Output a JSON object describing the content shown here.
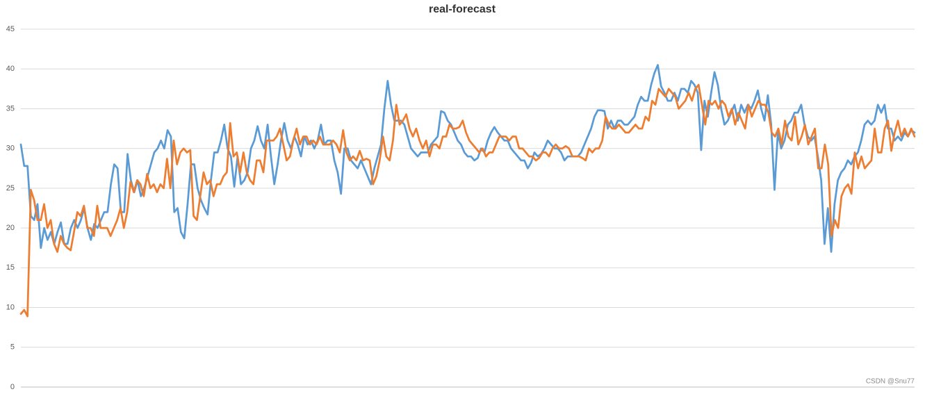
{
  "chart_data": {
    "type": "line",
    "title": "real-forecast",
    "watermark": "CSDN @Snu77",
    "ylim": [
      0,
      45
    ],
    "yticks": [
      0,
      5,
      10,
      15,
      20,
      25,
      30,
      35,
      40,
      45
    ],
    "grid": true,
    "series": [
      {
        "color": "#5b9bd5",
        "values": [
          30.5,
          27.8,
          27.8,
          21.5,
          21,
          23,
          17.5,
          20,
          18.5,
          19.5,
          18,
          19.5,
          20.7,
          18,
          18,
          20,
          21,
          20,
          21,
          22.5,
          20,
          18.5,
          20.5,
          20,
          21,
          22,
          22,
          25.5,
          28,
          27.5,
          22,
          22,
          29.3,
          26,
          24.5,
          26,
          24,
          25,
          26.5,
          28,
          29.5,
          30,
          31,
          30,
          32.3,
          31.5,
          22,
          22.5,
          19.5,
          18.7,
          23,
          28,
          28,
          25,
          23.5,
          22.5,
          21.7,
          26,
          29.5,
          29.5,
          31,
          33,
          30,
          29,
          25.2,
          29,
          25.5,
          26,
          27,
          30,
          31,
          32.8,
          31,
          30,
          33,
          29,
          25.5,
          28,
          31,
          33.2,
          31,
          30,
          31.5,
          30.5,
          29,
          31.5,
          30.5,
          31,
          30,
          31,
          33,
          30.5,
          31,
          31,
          28.5,
          27,
          24.3,
          30,
          30,
          28.5,
          28,
          27.5,
          28.5,
          27.5,
          26.5,
          25.5,
          27.5,
          29,
          30.5,
          35,
          38.5,
          35.5,
          33.5,
          33.5,
          33.5,
          33,
          31.5,
          30,
          29.5,
          29,
          29.5,
          29.5,
          29.5,
          30.5,
          31,
          31.5,
          34.7,
          34.5,
          33.5,
          33,
          32,
          31,
          30.5,
          29.5,
          29,
          29,
          28.5,
          28.8,
          30,
          29.5,
          31,
          32,
          32.7,
          32,
          31.5,
          31,
          31,
          30,
          29.5,
          29,
          28.5,
          28.5,
          27.5,
          28.2,
          29.5,
          29,
          29.3,
          30,
          31,
          30.5,
          30,
          30,
          29.5,
          28.5,
          29,
          29,
          29,
          29,
          29.5,
          30.5,
          31.5,
          32.5,
          34,
          34.8,
          34.8,
          34.7,
          32.5,
          33.5,
          32.5,
          33.5,
          33.5,
          33,
          33,
          33.5,
          34,
          35.5,
          36.5,
          36,
          36,
          38,
          39.5,
          40.5,
          37.8,
          37,
          36,
          36,
          37,
          36,
          37.5,
          37.5,
          37,
          38.5,
          38,
          37,
          29.8,
          36,
          34,
          37,
          39.6,
          38,
          35,
          33,
          33.5,
          34.5,
          35.5,
          33.5,
          35.5,
          34.5,
          35.5,
          35,
          36,
          37.3,
          35,
          33.5,
          36.7,
          33,
          24.8,
          32,
          30,
          31,
          33,
          33.5,
          34.5,
          34.5,
          35.5,
          33,
          31.5,
          31,
          31.5,
          29,
          26,
          18,
          22.5,
          17,
          23,
          26,
          27,
          27.5,
          28.5,
          28,
          29,
          29.5,
          31,
          33,
          33.5,
          33,
          33.5,
          35.5,
          34.5,
          35.5,
          32.5,
          32.5,
          31,
          31.5,
          31,
          32,
          31.5,
          32.3,
          32
        ]
      },
      {
        "color": "#ed7d31",
        "values": [
          9.2,
          9.7,
          8.9,
          24.8,
          23.5,
          21,
          21,
          23,
          20,
          21,
          18,
          17,
          19,
          18,
          17.5,
          17.2,
          19.5,
          22,
          21.5,
          22.8,
          20,
          20,
          19,
          22.8,
          20,
          20,
          20,
          19,
          20,
          21,
          22.5,
          20,
          22,
          25.8,
          24.5,
          26,
          25.5,
          24,
          26.8,
          25,
          25.5,
          24.5,
          25.5,
          25,
          28.7,
          25,
          31,
          28,
          29.5,
          30,
          29.5,
          29.8,
          21.5,
          21,
          24,
          27,
          25.5,
          26,
          24,
          25.5,
          25.5,
          26.5,
          27,
          33.2,
          29,
          29.5,
          27,
          29.5,
          27,
          26,
          25.5,
          28.5,
          28.5,
          27,
          31,
          31,
          31,
          31.5,
          32.5,
          30.5,
          28.5,
          29,
          31,
          32.5,
          30.5,
          31.5,
          31.5,
          30.5,
          31,
          30.5,
          31.5,
          30.5,
          30.5,
          30.5,
          31,
          30.5,
          29.5,
          32.3,
          29.5,
          28.5,
          29,
          28.5,
          29.7,
          28.5,
          28.7,
          28.5,
          25.5,
          26.5,
          28.5,
          31.5,
          29,
          28.5,
          31,
          35.5,
          33,
          33.5,
          34.3,
          32.5,
          31.5,
          32.5,
          31,
          30,
          31,
          29,
          30.5,
          30.5,
          30,
          31.5,
          31.5,
          33,
          32.5,
          32.5,
          32.7,
          33.5,
          32,
          31,
          30.5,
          30,
          29.5,
          30,
          29,
          29.5,
          29.5,
          30.5,
          31.5,
          31.5,
          31.5,
          31,
          31.5,
          31.5,
          30,
          30,
          29.5,
          29,
          29,
          28.5,
          28.8,
          29.5,
          29.5,
          29,
          30,
          30.5,
          30,
          30,
          30.3,
          30,
          29,
          29,
          29,
          28.8,
          28.5,
          30,
          29.5,
          30,
          30,
          31,
          34,
          33,
          32.5,
          32.5,
          33,
          32.5,
          32,
          32,
          32.5,
          33,
          32.5,
          32.5,
          34,
          33.5,
          36,
          35.5,
          37.5,
          37,
          36.5,
          37.5,
          37,
          36.5,
          35,
          35.5,
          36,
          37,
          36,
          37.5,
          38,
          35.5,
          33,
          36,
          35.5,
          36,
          35,
          36,
          35.5,
          34,
          35,
          33,
          34.5,
          33.5,
          32.5,
          35.5,
          34,
          35,
          36,
          35.5,
          35.5,
          34.5,
          32,
          31.5,
          32.5,
          30.5,
          33.5,
          31.5,
          31,
          34,
          30.5,
          31.5,
          33,
          30.5,
          31.5,
          32.5,
          27.5,
          27.5,
          30.5,
          28,
          19,
          21,
          20,
          24,
          25,
          25.5,
          24.3,
          29.5,
          27.5,
          29,
          27.5,
          28,
          28.5,
          32.5,
          29.5,
          29.5,
          32.5,
          33.5,
          29.7,
          32,
          33.5,
          31.5,
          32.5,
          31.5,
          32.5,
          31.5
        ]
      }
    ]
  }
}
